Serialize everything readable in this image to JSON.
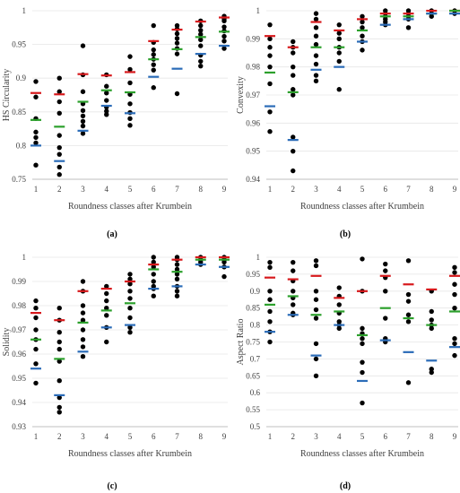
{
  "chart_data": [
    {
      "panel_label": "(a)",
      "type": "scatter",
      "xlabel": "Roundness classes after Krumbein",
      "ylabel": "HS Circularity",
      "ylim": [
        0.75,
        1.0
      ],
      "yticks": [
        0.75,
        0.8,
        0.85,
        0.9,
        0.95,
        1
      ],
      "ytick_labels": [
        "0.75",
        "0.8",
        "0.85",
        "0.9",
        "0.95",
        "1"
      ],
      "x": [
        1,
        2,
        3,
        4,
        5,
        6,
        7,
        8,
        9
      ],
      "xtick_labels": [
        "1",
        "2",
        "3",
        "4",
        "5",
        "6",
        "7",
        "8",
        "9"
      ],
      "points": [
        [
          1,
          0.895
        ],
        [
          1,
          0.872
        ],
        [
          1,
          0.84
        ],
        [
          1,
          0.82
        ],
        [
          1,
          0.812
        ],
        [
          1,
          0.804
        ],
        [
          1,
          0.771
        ],
        [
          2,
          0.9
        ],
        [
          2,
          0.88
        ],
        [
          2,
          0.865
        ],
        [
          2,
          0.848
        ],
        [
          2,
          0.815
        ],
        [
          2,
          0.797
        ],
        [
          2,
          0.787
        ],
        [
          2,
          0.768
        ],
        [
          2,
          0.757
        ],
        [
          3,
          0.948
        ],
        [
          3,
          0.905
        ],
        [
          3,
          0.88
        ],
        [
          3,
          0.862
        ],
        [
          3,
          0.852
        ],
        [
          3,
          0.844
        ],
        [
          3,
          0.836
        ],
        [
          3,
          0.829
        ],
        [
          3,
          0.818
        ],
        [
          4,
          0.905
        ],
        [
          4,
          0.888
        ],
        [
          4,
          0.878
        ],
        [
          4,
          0.867
        ],
        [
          4,
          0.857
        ],
        [
          4,
          0.851
        ],
        [
          4,
          0.846
        ],
        [
          5,
          0.932
        ],
        [
          5,
          0.913
        ],
        [
          5,
          0.893
        ],
        [
          5,
          0.876
        ],
        [
          5,
          0.862
        ],
        [
          5,
          0.849
        ],
        [
          5,
          0.84
        ],
        [
          5,
          0.83
        ],
        [
          6,
          0.978
        ],
        [
          6,
          0.953
        ],
        [
          6,
          0.942
        ],
        [
          6,
          0.935
        ],
        [
          6,
          0.928
        ],
        [
          6,
          0.92
        ],
        [
          6,
          0.912
        ],
        [
          6,
          0.886
        ],
        [
          7,
          0.978
        ],
        [
          7,
          0.973
        ],
        [
          7,
          0.966
        ],
        [
          7,
          0.959
        ],
        [
          7,
          0.952
        ],
        [
          7,
          0.944
        ],
        [
          7,
          0.936
        ],
        [
          7,
          0.877
        ],
        [
          8,
          0.985
        ],
        [
          8,
          0.978
        ],
        [
          8,
          0.971
        ],
        [
          8,
          0.965
        ],
        [
          8,
          0.957
        ],
        [
          8,
          0.948
        ],
        [
          8,
          0.934
        ],
        [
          8,
          0.925
        ],
        [
          8,
          0.918
        ],
        [
          9,
          0.992
        ],
        [
          9,
          0.988
        ],
        [
          9,
          0.985
        ],
        [
          9,
          0.976
        ],
        [
          9,
          0.97
        ],
        [
          9,
          0.962
        ],
        [
          9,
          0.955
        ],
        [
          9,
          0.944
        ]
      ],
      "red": [
        0.878,
        0.876,
        0.906,
        0.904,
        0.909,
        0.955,
        0.972,
        0.984,
        0.99
      ],
      "green": [
        0.838,
        0.828,
        0.865,
        0.882,
        0.879,
        0.928,
        0.943,
        0.961,
        0.969
      ],
      "blue": [
        0.8,
        0.777,
        0.822,
        0.859,
        0.848,
        0.902,
        0.914,
        0.936,
        0.948
      ]
    },
    {
      "panel_label": "(b)",
      "type": "scatter",
      "xlabel": "Roundness classes after Krumbein",
      "ylabel": "Convexity",
      "ylim": [
        0.94,
        1.0
      ],
      "yticks": [
        0.94,
        0.95,
        0.96,
        0.97,
        0.98,
        0.99,
        1
      ],
      "ytick_labels": [
        "0.94",
        "0.95",
        "0.96",
        "0.97",
        "0.98",
        "0.99",
        "1"
      ],
      "x": [
        1,
        2,
        3,
        4,
        5,
        6,
        7,
        8,
        9
      ],
      "xtick_labels": [
        "1",
        "2",
        "3",
        "4",
        "5",
        "6",
        "7",
        "8",
        "9"
      ],
      "points": [
        [
          1,
          0.995
        ],
        [
          1,
          0.99
        ],
        [
          1,
          0.987
        ],
        [
          1,
          0.984
        ],
        [
          1,
          0.98
        ],
        [
          1,
          0.974
        ],
        [
          1,
          0.964
        ],
        [
          1,
          0.957
        ],
        [
          2,
          0.989
        ],
        [
          2,
          0.987
        ],
        [
          2,
          0.985
        ],
        [
          2,
          0.98
        ],
        [
          2,
          0.977
        ],
        [
          2,
          0.972
        ],
        [
          2,
          0.97
        ],
        [
          2,
          0.955
        ],
        [
          2,
          0.95
        ],
        [
          2,
          0.943
        ],
        [
          3,
          0.999
        ],
        [
          3,
          0.997
        ],
        [
          3,
          0.994
        ],
        [
          3,
          0.991
        ],
        [
          3,
          0.988
        ],
        [
          3,
          0.984
        ],
        [
          3,
          0.981
        ],
        [
          3,
          0.977
        ],
        [
          3,
          0.975
        ],
        [
          4,
          0.995
        ],
        [
          4,
          0.992
        ],
        [
          4,
          0.99
        ],
        [
          4,
          0.987
        ],
        [
          4,
          0.985
        ],
        [
          4,
          0.982
        ],
        [
          4,
          0.972
        ],
        [
          5,
          0.998
        ],
        [
          5,
          0.996
        ],
        [
          5,
          0.994
        ],
        [
          5,
          0.991
        ],
        [
          5,
          0.989
        ],
        [
          5,
          0.986
        ],
        [
          6,
          1.0
        ],
        [
          6,
          0.999
        ],
        [
          6,
          0.998
        ],
        [
          6,
          0.997
        ],
        [
          6,
          0.996
        ],
        [
          6,
          0.995
        ],
        [
          7,
          1.0
        ],
        [
          7,
          0.999
        ],
        [
          7,
          0.998
        ],
        [
          7,
          0.997
        ],
        [
          7,
          0.994
        ],
        [
          8,
          1.0
        ],
        [
          8,
          0.999
        ],
        [
          8,
          0.998
        ],
        [
          9,
          1.0
        ],
        [
          9,
          0.999
        ]
      ],
      "red": [
        0.991,
        0.987,
        0.996,
        0.993,
        0.997,
        0.999,
        0.999,
        1.0,
        1.0
      ],
      "green": [
        0.978,
        0.971,
        0.987,
        0.987,
        0.993,
        0.998,
        0.998,
        0.999,
        1.0
      ],
      "blue": [
        0.966,
        0.954,
        0.979,
        0.98,
        0.989,
        0.995,
        0.997,
        0.999,
        0.999
      ]
    },
    {
      "panel_label": "(c)",
      "type": "scatter",
      "xlabel": "Roundness classes after Krumbein",
      "ylabel": "Solidity",
      "ylim": [
        0.93,
        1.0
      ],
      "yticks": [
        0.93,
        0.94,
        0.95,
        0.96,
        0.97,
        0.98,
        0.99,
        1
      ],
      "ytick_labels": [
        "0.93",
        "0.94",
        "0.95",
        "0.96",
        "0.97",
        "0.98",
        "0.99",
        "1"
      ],
      "x": [
        1,
        2,
        3,
        4,
        5,
        6,
        7,
        8,
        9
      ],
      "xtick_labels": [
        "1",
        "2",
        "3",
        "4",
        "5",
        "6",
        "7",
        "8",
        "9"
      ],
      "points": [
        [
          1,
          0.982
        ],
        [
          1,
          0.979
        ],
        [
          1,
          0.975
        ],
        [
          1,
          0.97
        ],
        [
          1,
          0.966
        ],
        [
          1,
          0.962
        ],
        [
          1,
          0.956
        ],
        [
          1,
          0.948
        ],
        [
          2,
          0.979
        ],
        [
          2,
          0.974
        ],
        [
          2,
          0.969
        ],
        [
          2,
          0.965
        ],
        [
          2,
          0.962
        ],
        [
          2,
          0.957
        ],
        [
          2,
          0.949
        ],
        [
          2,
          0.942
        ],
        [
          2,
          0.938
        ],
        [
          2,
          0.936
        ],
        [
          3,
          0.99
        ],
        [
          3,
          0.986
        ],
        [
          3,
          0.98
        ],
        [
          3,
          0.977
        ],
        [
          3,
          0.974
        ],
        [
          3,
          0.97
        ],
        [
          3,
          0.966
        ],
        [
          3,
          0.963
        ],
        [
          3,
          0.959
        ],
        [
          4,
          0.988
        ],
        [
          4,
          0.985
        ],
        [
          4,
          0.982
        ],
        [
          4,
          0.979
        ],
        [
          4,
          0.976
        ],
        [
          4,
          0.971
        ],
        [
          4,
          0.965
        ],
        [
          5,
          0.993
        ],
        [
          5,
          0.991
        ],
        [
          5,
          0.989
        ],
        [
          5,
          0.986
        ],
        [
          5,
          0.983
        ],
        [
          5,
          0.979
        ],
        [
          5,
          0.975
        ],
        [
          5,
          0.971
        ],
        [
          5,
          0.969
        ],
        [
          6,
          1.0
        ],
        [
          6,
          0.998
        ],
        [
          6,
          0.996
        ],
        [
          6,
          0.993
        ],
        [
          6,
          0.99
        ],
        [
          6,
          0.988
        ],
        [
          6,
          0.987
        ],
        [
          6,
          0.984
        ],
        [
          7,
          1.0
        ],
        [
          7,
          0.999
        ],
        [
          7,
          0.997
        ],
        [
          7,
          0.995
        ],
        [
          7,
          0.993
        ],
        [
          7,
          0.991
        ],
        [
          7,
          0.988
        ],
        [
          7,
          0.986
        ],
        [
          7,
          0.984
        ],
        [
          8,
          1.0
        ],
        [
          8,
          0.999
        ],
        [
          8,
          0.998
        ],
        [
          8,
          0.997
        ],
        [
          9,
          1.0
        ],
        [
          9,
          0.999
        ],
        [
          9,
          0.998
        ],
        [
          9,
          0.996
        ],
        [
          9,
          0.992
        ]
      ],
      "red": [
        0.977,
        0.974,
        0.986,
        0.987,
        0.99,
        0.997,
        0.999,
        1.0,
        1.0
      ],
      "green": [
        0.966,
        0.958,
        0.973,
        0.978,
        0.981,
        0.995,
        0.994,
        0.999,
        0.999
      ],
      "blue": [
        0.954,
        0.943,
        0.961,
        0.971,
        0.972,
        0.987,
        0.988,
        0.997,
        0.996
      ]
    },
    {
      "panel_label": "(d)",
      "type": "scatter",
      "xlabel": "Roundness classes after Krumbein",
      "ylabel": "Aspect Ratio",
      "ylim": [
        0.5,
        1.0
      ],
      "yticks": [
        0.5,
        0.55,
        0.6,
        0.65,
        0.7,
        0.75,
        0.8,
        0.85,
        0.9,
        0.95,
        1
      ],
      "ytick_labels": [
        "0.5",
        "0.55",
        "0.6",
        "0.65",
        "0.7",
        "0.75",
        "0.8",
        "0.85",
        "0.9",
        "0.95",
        "1"
      ],
      "x": [
        1,
        2,
        3,
        4,
        5,
        6,
        7,
        8,
        9
      ],
      "xtick_labels": [
        "1",
        "2",
        "3",
        "4",
        "5",
        "6",
        "7",
        "8",
        "9"
      ],
      "points": [
        [
          1,
          0.985
        ],
        [
          1,
          0.97
        ],
        [
          1,
          0.9
        ],
        [
          1,
          0.875
        ],
        [
          1,
          0.84
        ],
        [
          1,
          0.81
        ],
        [
          1,
          0.78
        ],
        [
          1,
          0.75
        ],
        [
          2,
          0.985
        ],
        [
          2,
          0.96
        ],
        [
          2,
          0.93
        ],
        [
          2,
          0.9
        ],
        [
          2,
          0.88
        ],
        [
          2,
          0.86
        ],
        [
          2,
          0.835
        ],
        [
          2,
          0.83
        ],
        [
          3,
          0.99
        ],
        [
          3,
          0.975
        ],
        [
          3,
          0.9
        ],
        [
          3,
          0.875
        ],
        [
          3,
          0.845
        ],
        [
          3,
          0.82
        ],
        [
          3,
          0.745
        ],
        [
          3,
          0.7
        ],
        [
          3,
          0.65
        ],
        [
          4,
          0.91
        ],
        [
          4,
          0.885
        ],
        [
          4,
          0.86
        ],
        [
          4,
          0.835
        ],
        [
          4,
          0.81
        ],
        [
          4,
          0.8
        ],
        [
          4,
          0.79
        ],
        [
          5,
          0.995
        ],
        [
          5,
          0.9
        ],
        [
          5,
          0.79
        ],
        [
          5,
          0.775
        ],
        [
          5,
          0.76
        ],
        [
          5,
          0.745
        ],
        [
          5,
          0.69
        ],
        [
          5,
          0.66
        ],
        [
          5,
          0.57
        ],
        [
          6,
          0.98
        ],
        [
          6,
          0.96
        ],
        [
          6,
          0.94
        ],
        [
          6,
          0.9
        ],
        [
          6,
          0.82
        ],
        [
          6,
          0.76
        ],
        [
          6,
          0.75
        ],
        [
          7,
          0.99
        ],
        [
          7,
          0.89
        ],
        [
          7,
          0.87
        ],
        [
          7,
          0.83
        ],
        [
          7,
          0.81
        ],
        [
          7,
          0.63
        ],
        [
          8,
          0.9
        ],
        [
          8,
          0.84
        ],
        [
          8,
          0.815
        ],
        [
          8,
          0.8
        ],
        [
          8,
          0.79
        ],
        [
          8,
          0.67
        ],
        [
          8,
          0.66
        ],
        [
          9,
          0.97
        ],
        [
          9,
          0.955
        ],
        [
          9,
          0.92
        ],
        [
          9,
          0.89
        ],
        [
          9,
          0.85
        ],
        [
          9,
          0.76
        ],
        [
          9,
          0.745
        ],
        [
          9,
          0.71
        ]
      ],
      "red": [
        0.94,
        0.935,
        0.945,
        0.88,
        0.9,
        0.945,
        0.92,
        0.905,
        0.945
      ],
      "green": [
        0.86,
        0.885,
        0.83,
        0.84,
        0.77,
        0.85,
        0.82,
        0.8,
        0.84
      ],
      "blue": [
        0.78,
        0.83,
        0.71,
        0.8,
        0.635,
        0.755,
        0.72,
        0.695,
        0.735
      ]
    }
  ],
  "colors": {
    "red": "#d7191c",
    "green": "#2ca02c",
    "blue": "#2b6cb8",
    "point": "#000000",
    "axis": "#bfbfbf",
    "grid": "#e6e6e6"
  }
}
